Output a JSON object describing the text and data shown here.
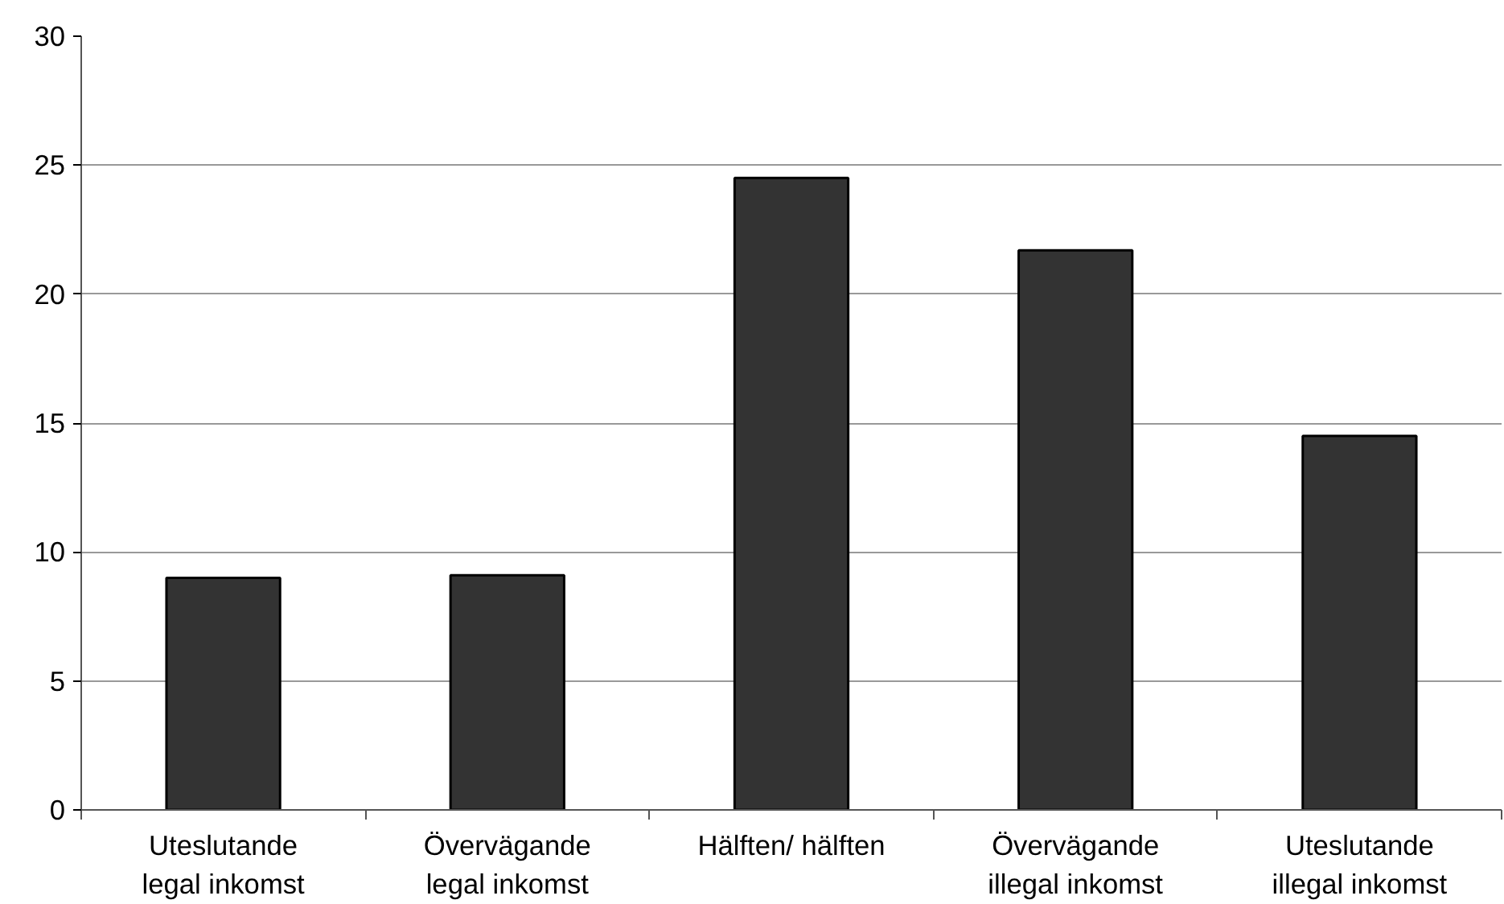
{
  "chart_data": {
    "type": "bar",
    "categories": [
      "Uteslutande legal inkomst",
      "Övervägande legal inkomst",
      "Hälften/ hälften",
      "Övervägande illegal inkomst",
      "Uteslutande illegal inkomst"
    ],
    "values": [
      9.0,
      9.1,
      24.5,
      21.7,
      14.5
    ],
    "color": "#333333",
    "ylim": [
      0,
      30
    ],
    "yticks": [
      0,
      5,
      10,
      15,
      20,
      25,
      30
    ],
    "grid": "y"
  }
}
